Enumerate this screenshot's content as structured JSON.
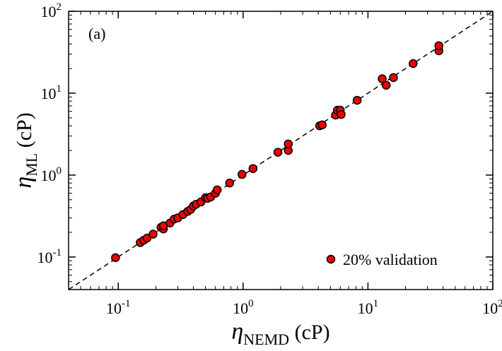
{
  "chart_data": {
    "type": "scatter",
    "annotation": "(a)",
    "xlabel": {
      "base": "η",
      "sub": "NEMD",
      "rest": " (cP)"
    },
    "ylabel": {
      "base": "η",
      "sub": "ML",
      "rest": " (cP)"
    },
    "xscale": "log",
    "yscale": "log",
    "xlim": [
      0.04,
      100
    ],
    "ylim": [
      0.04,
      100
    ],
    "xticks": [
      {
        "value": 0.1,
        "label": "10",
        "exponent": "-1"
      },
      {
        "value": 1,
        "label": "10",
        "exponent": "0"
      },
      {
        "value": 10,
        "label": "10",
        "exponent": "1"
      },
      {
        "value": 100,
        "label": "10",
        "exponent": "2"
      }
    ],
    "yticks": [
      {
        "value": 0.1,
        "label": "10",
        "exponent": "-1"
      },
      {
        "value": 1,
        "label": "10",
        "exponent": "0"
      },
      {
        "value": 10,
        "label": "10",
        "exponent": "1"
      },
      {
        "value": 100,
        "label": "10",
        "exponent": "2"
      }
    ],
    "diagonal": true,
    "legend": "lower right",
    "series": [
      {
        "name": "20% validation",
        "color": "#ee0000",
        "x": [
          0.095,
          0.15,
          0.16,
          0.17,
          0.19,
          0.22,
          0.23,
          0.23,
          0.26,
          0.28,
          0.3,
          0.33,
          0.36,
          0.38,
          0.4,
          0.42,
          0.46,
          0.5,
          0.52,
          0.55,
          0.6,
          0.62,
          0.78,
          0.98,
          1.2,
          1.9,
          2.3,
          2.3,
          4.1,
          4.3,
          5.5,
          5.7,
          6.0,
          6.1,
          8.2,
          13,
          14,
          16,
          23,
          37,
          37
        ],
        "values": [
          0.098,
          0.15,
          0.16,
          0.17,
          0.19,
          0.23,
          0.22,
          0.24,
          0.26,
          0.29,
          0.3,
          0.33,
          0.36,
          0.38,
          0.42,
          0.44,
          0.47,
          0.53,
          0.52,
          0.54,
          0.6,
          0.66,
          0.8,
          1.02,
          1.2,
          1.9,
          2.0,
          2.4,
          4.0,
          4.1,
          5.4,
          6.2,
          6.2,
          5.5,
          8.2,
          15,
          12.5,
          15.5,
          23,
          33,
          38
        ]
      }
    ]
  }
}
